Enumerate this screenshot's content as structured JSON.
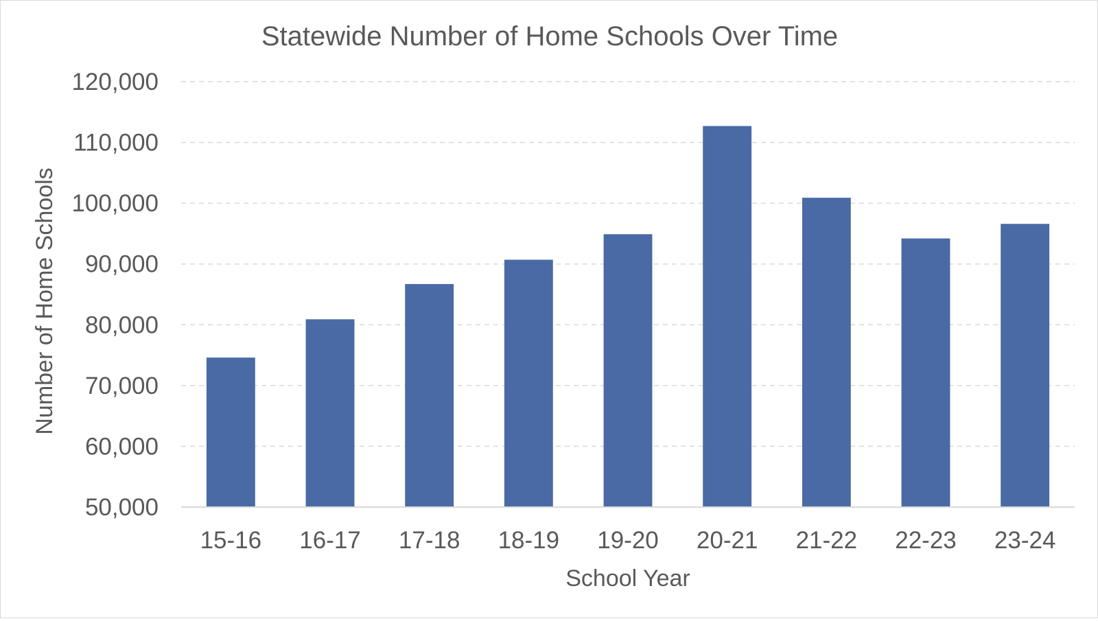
{
  "chart_data": {
    "type": "bar",
    "title": "Statewide Number of Home Schools Over Time",
    "xlabel": "School Year",
    "ylabel": "Number of Home Schools",
    "categories": [
      "15-16",
      "16-17",
      "17-18",
      "18-19",
      "19-20",
      "20-21",
      "21-22",
      "22-23",
      "23-24"
    ],
    "values": [
      74600,
      80900,
      86700,
      90700,
      94900,
      112700,
      100900,
      94200,
      96600
    ],
    "ylim": [
      50000,
      120000
    ],
    "yticks": [
      50000,
      60000,
      70000,
      80000,
      90000,
      100000,
      110000,
      120000
    ],
    "ytick_labels": [
      "50,000",
      "60,000",
      "70,000",
      "80,000",
      "90,000",
      "100,000",
      "110,000",
      "120,000"
    ],
    "grid": true,
    "bar_color": "#4a6aa5",
    "gridline_color": "#d9d9d9",
    "text_color": "#595959"
  }
}
